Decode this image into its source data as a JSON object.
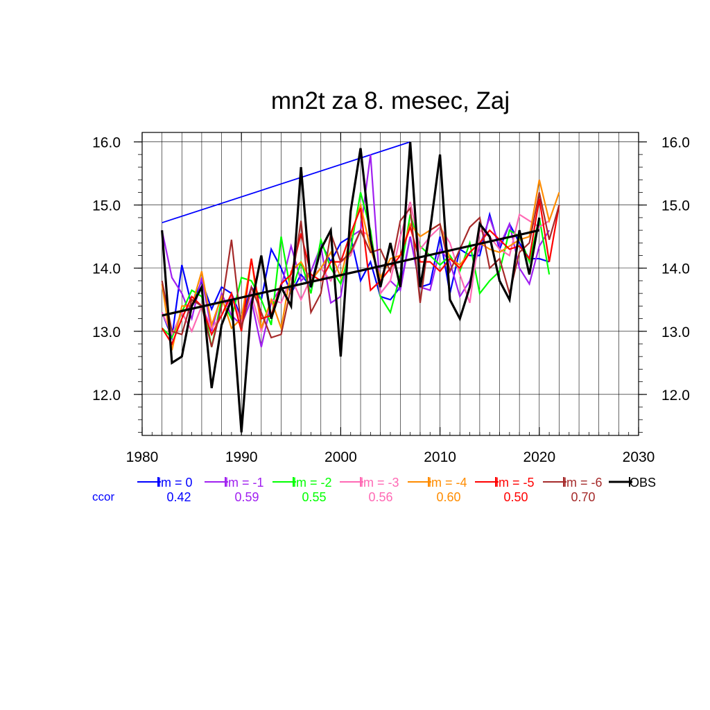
{
  "chart_data": {
    "type": "line",
    "title": "mn2t za 8. mesec, Zaj",
    "xlabel": "",
    "ylabel": "",
    "xlim": [
      1980,
      2030
    ],
    "ylim": [
      11.35,
      16.15
    ],
    "x_ticks": [
      "1980",
      "1990",
      "2000",
      "2010",
      "2020",
      "2030"
    ],
    "y_ticks": [
      "12.0",
      "13.0",
      "14.0",
      "15.0",
      "16.0"
    ],
    "grid": true,
    "legend_position": "bottom",
    "ccor_label": "ccor",
    "series": [
      {
        "name": "lm = 0",
        "color": "#0000ff",
        "ccor": "0.42",
        "x": [
          1982,
          1983,
          1984,
          1985,
          1986,
          1987,
          1988,
          1989,
          1990,
          1991,
          1992,
          1993,
          1994,
          1995,
          1996,
          1997,
          1998,
          1999,
          2000,
          2001,
          2002,
          2003,
          2004,
          2005,
          2006,
          2007,
          2008,
          2009,
          2010,
          2011,
          2012,
          2013,
          2014,
          2015,
          2016,
          2017,
          2018,
          2019,
          2020,
          2021
        ],
        "values": [
          13.3,
          12.9,
          14.05,
          13.4,
          13.8,
          13.35,
          13.7,
          13.6,
          13.2,
          13.7,
          13.5,
          14.3,
          14.0,
          13.6,
          13.9,
          13.7,
          14.4,
          14.1,
          14.4,
          14.5,
          13.8,
          14.1,
          13.55,
          13.5,
          13.7,
          14.5,
          13.7,
          13.75,
          14.5,
          13.6,
          14.3,
          14.2,
          14.2,
          14.85,
          14.3,
          14.7,
          14.4,
          14.15,
          14.15,
          14.1
        ]
      },
      {
        "name": "lm = -1",
        "color": "#a020f0",
        "ccor": "0.59",
        "x": [
          1982,
          1983,
          1984,
          1985,
          1986,
          1987,
          1988,
          1989,
          1990,
          1991,
          1992,
          1993,
          1994,
          1995,
          1996,
          1997,
          1998,
          1999,
          2000,
          2001,
          2002,
          2003,
          2004,
          2005,
          2006,
          2007,
          2008,
          2009,
          2010,
          2011,
          2012,
          2013,
          2014,
          2015,
          2016,
          2017,
          2018,
          2019,
          2020,
          2021
        ],
        "values": [
          14.6,
          13.85,
          13.6,
          13.2,
          13.85,
          13.0,
          13.6,
          13.25,
          13.1,
          13.5,
          12.75,
          13.45,
          13.7,
          14.35,
          13.8,
          13.95,
          14.35,
          13.45,
          13.55,
          14.5,
          14.6,
          15.8,
          13.6,
          13.8,
          13.65,
          14.5,
          13.7,
          13.65,
          14.3,
          14.1,
          13.55,
          13.8,
          14.35,
          14.8,
          14.35,
          14.7,
          14.0,
          13.75,
          14.35,
          14.6
        ]
      },
      {
        "name": "lm = -2",
        "color": "#00ff00",
        "ccor": "0.55",
        "x": [
          1982,
          1983,
          1984,
          1985,
          1986,
          1987,
          1988,
          1989,
          1990,
          1991,
          1992,
          1993,
          1994,
          1995,
          1996,
          1997,
          1998,
          1999,
          2000,
          2001,
          2002,
          2003,
          2004,
          2005,
          2006,
          2007,
          2008,
          2009,
          2010,
          2011,
          2012,
          2013,
          2014,
          2015,
          2016,
          2017,
          2018,
          2019,
          2020,
          2021
        ],
        "values": [
          13.05,
          12.9,
          13.3,
          13.65,
          13.55,
          12.75,
          13.5,
          13.2,
          13.85,
          13.8,
          13.5,
          13.1,
          14.5,
          13.6,
          14.1,
          13.6,
          14.45,
          14.0,
          13.75,
          14.3,
          15.2,
          14.6,
          13.55,
          13.3,
          13.9,
          14.85,
          14.35,
          14.2,
          14.05,
          14.2,
          13.95,
          14.4,
          13.6,
          13.8,
          13.95,
          14.6,
          14.5,
          14.1,
          14.8,
          13.9
        ]
      },
      {
        "name": "lm = -3",
        "color": "#ff69b4",
        "ccor": "0.56",
        "x": [
          1982,
          1983,
          1984,
          1985,
          1986,
          1987,
          1988,
          1989,
          1990,
          1991,
          1992,
          1993,
          1994,
          1995,
          1996,
          1997,
          1998,
          1999,
          2000,
          2001,
          2002,
          2003,
          2004,
          2005,
          2006,
          2007,
          2008,
          2009,
          2010,
          2011,
          2012,
          2013,
          2014,
          2015,
          2016,
          2017,
          2018,
          2019,
          2020,
          2021
        ],
        "values": [
          13.3,
          12.95,
          13.3,
          13.0,
          13.4,
          13.05,
          13.25,
          13.55,
          13.15,
          13.6,
          13.0,
          13.5,
          13.45,
          13.85,
          13.5,
          13.85,
          14.0,
          13.8,
          14.1,
          14.2,
          14.6,
          14.5,
          13.6,
          13.8,
          14.5,
          15.05,
          14.3,
          14.5,
          14.65,
          14.4,
          13.9,
          13.45,
          14.6,
          14.5,
          14.3,
          14.2,
          14.85,
          14.75,
          14.65,
          14.75
        ]
      },
      {
        "name": "lm = -4",
        "color": "#ff8c00",
        "ccor": "0.60",
        "x": [
          1982,
          1983,
          1984,
          1985,
          1986,
          1987,
          1988,
          1989,
          1990,
          1991,
          1992,
          1993,
          1994,
          1995,
          1996,
          1997,
          1998,
          1999,
          2000,
          2001,
          2002,
          2003,
          2004,
          2005,
          2006,
          2007,
          2008,
          2009,
          2010,
          2011,
          2012,
          2013,
          2014,
          2015,
          2016,
          2017,
          2018,
          2019,
          2020,
          2021,
          2022
        ],
        "values": [
          13.75,
          12.7,
          13.4,
          13.4,
          13.95,
          13.1,
          13.55,
          13.05,
          13.2,
          14.15,
          13.05,
          13.5,
          13.05,
          13.95,
          14.1,
          13.8,
          14.0,
          14.25,
          13.85,
          14.5,
          15.0,
          14.3,
          13.85,
          14.15,
          14.2,
          14.7,
          14.5,
          14.6,
          14.7,
          14.15,
          14.05,
          14.25,
          14.4,
          14.3,
          14.25,
          14.35,
          14.45,
          14.5,
          15.4,
          14.75,
          15.2
        ]
      },
      {
        "name": "lm = -5",
        "color": "#ff0000",
        "ccor": "0.50",
        "x": [
          1982,
          1983,
          1984,
          1985,
          1986,
          1987,
          1988,
          1989,
          1990,
          1991,
          1992,
          1993,
          1994,
          1995,
          1996,
          1997,
          1998,
          1999,
          2000,
          2001,
          2002,
          2003,
          2004,
          2005,
          2006,
          2007,
          2008,
          2009,
          2010,
          2011,
          2012,
          2013,
          2014,
          2015,
          2016,
          2017,
          2018,
          2019,
          2020,
          2021,
          2022
        ],
        "values": [
          13.05,
          12.8,
          13.2,
          13.55,
          13.4,
          12.95,
          13.25,
          13.6,
          13.0,
          14.15,
          13.2,
          13.25,
          13.75,
          13.9,
          14.55,
          13.9,
          13.8,
          14.1,
          14.1,
          14.55,
          14.95,
          13.65,
          13.8,
          14.0,
          14.2,
          14.65,
          14.1,
          14.1,
          13.95,
          14.15,
          14.0,
          14.25,
          14.4,
          14.6,
          14.45,
          14.3,
          14.35,
          14.15,
          15.1,
          14.1,
          15.0
        ]
      },
      {
        "name": "lm = -6",
        "color": "#a52a2a",
        "ccor": "0.70",
        "x": [
          1982,
          1983,
          1984,
          1985,
          1986,
          1987,
          1988,
          1989,
          1990,
          1991,
          1992,
          1993,
          1994,
          1995,
          1996,
          1997,
          1998,
          1999,
          2000,
          2001,
          2002,
          2003,
          2004,
          2005,
          2006,
          2007,
          2008,
          2009,
          2010,
          2011,
          2012,
          2013,
          2014,
          2015,
          2016,
          2017,
          2018,
          2019,
          2020,
          2021,
          2022
        ],
        "values": [
          13.8,
          13.0,
          12.95,
          13.5,
          13.4,
          12.75,
          13.4,
          14.45,
          13.05,
          13.7,
          13.3,
          12.9,
          12.95,
          13.7,
          14.75,
          13.3,
          13.6,
          14.55,
          14.1,
          14.25,
          14.6,
          14.25,
          14.3,
          13.95,
          14.75,
          14.95,
          13.45,
          14.6,
          14.7,
          13.95,
          14.3,
          14.65,
          14.8,
          14.0,
          14.15,
          13.6,
          14.25,
          14.4,
          15.2,
          14.45,
          15.0
        ]
      },
      {
        "name": "OBS",
        "color": "#000000",
        "ccor": "",
        "x": [
          1982,
          1983,
          1984,
          1985,
          1986,
          1987,
          1988,
          1989,
          1990,
          1991,
          1992,
          1993,
          1994,
          1995,
          1996,
          1997,
          1998,
          1999,
          2000,
          2001,
          2002,
          2003,
          2004,
          2005,
          2006,
          2007,
          2008,
          2009,
          2010,
          2011,
          2012,
          2013,
          2014,
          2015,
          2016,
          2017,
          2018,
          2019,
          2020
        ],
        "values": [
          14.6,
          12.5,
          12.6,
          13.4,
          13.7,
          12.1,
          13.1,
          13.5,
          11.4,
          13.4,
          14.2,
          13.2,
          13.7,
          13.4,
          15.6,
          13.7,
          14.3,
          14.6,
          12.6,
          14.9,
          15.9,
          14.45,
          13.7,
          14.4,
          13.7,
          16.0,
          13.7,
          14.6,
          15.8,
          13.5,
          13.2,
          13.7,
          14.7,
          14.5,
          13.8,
          13.5,
          14.6,
          13.9,
          14.8
        ]
      }
    ],
    "trend_line": {
      "color": "#000000",
      "x": [
        1982,
        2020
      ],
      "values": [
        13.25,
        14.6
      ]
    },
    "blue_segment": {
      "color": "#0000ff",
      "x": [
        1982,
        2007
      ],
      "values": [
        14.72,
        16.0
      ]
    }
  }
}
